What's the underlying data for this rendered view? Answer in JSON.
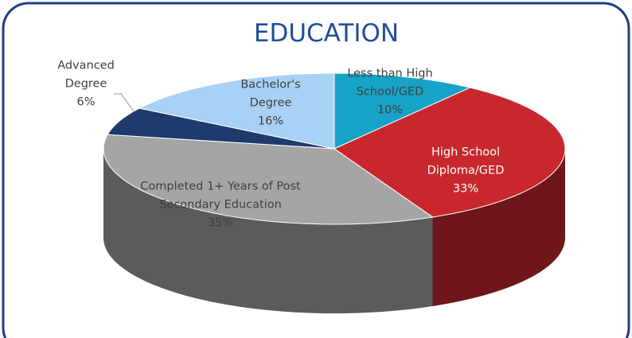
{
  "chart_data": {
    "type": "pie",
    "title": "EDUCATION",
    "categories": [
      "Less than High School/GED",
      "High School Diploma/GED",
      "Completed 1+ Years of Post Secondary Education",
      "Advanced Degree",
      "Bachelor's Degree"
    ],
    "values": [
      10,
      33,
      35,
      6,
      16
    ],
    "value_labels": [
      "10%",
      "33%",
      "35%",
      "6%",
      "16%"
    ],
    "colors": [
      "#17a3c8",
      "#c8282d",
      "#a5a5a5",
      "#1f3b6d",
      "#a9d0f5"
    ]
  }
}
